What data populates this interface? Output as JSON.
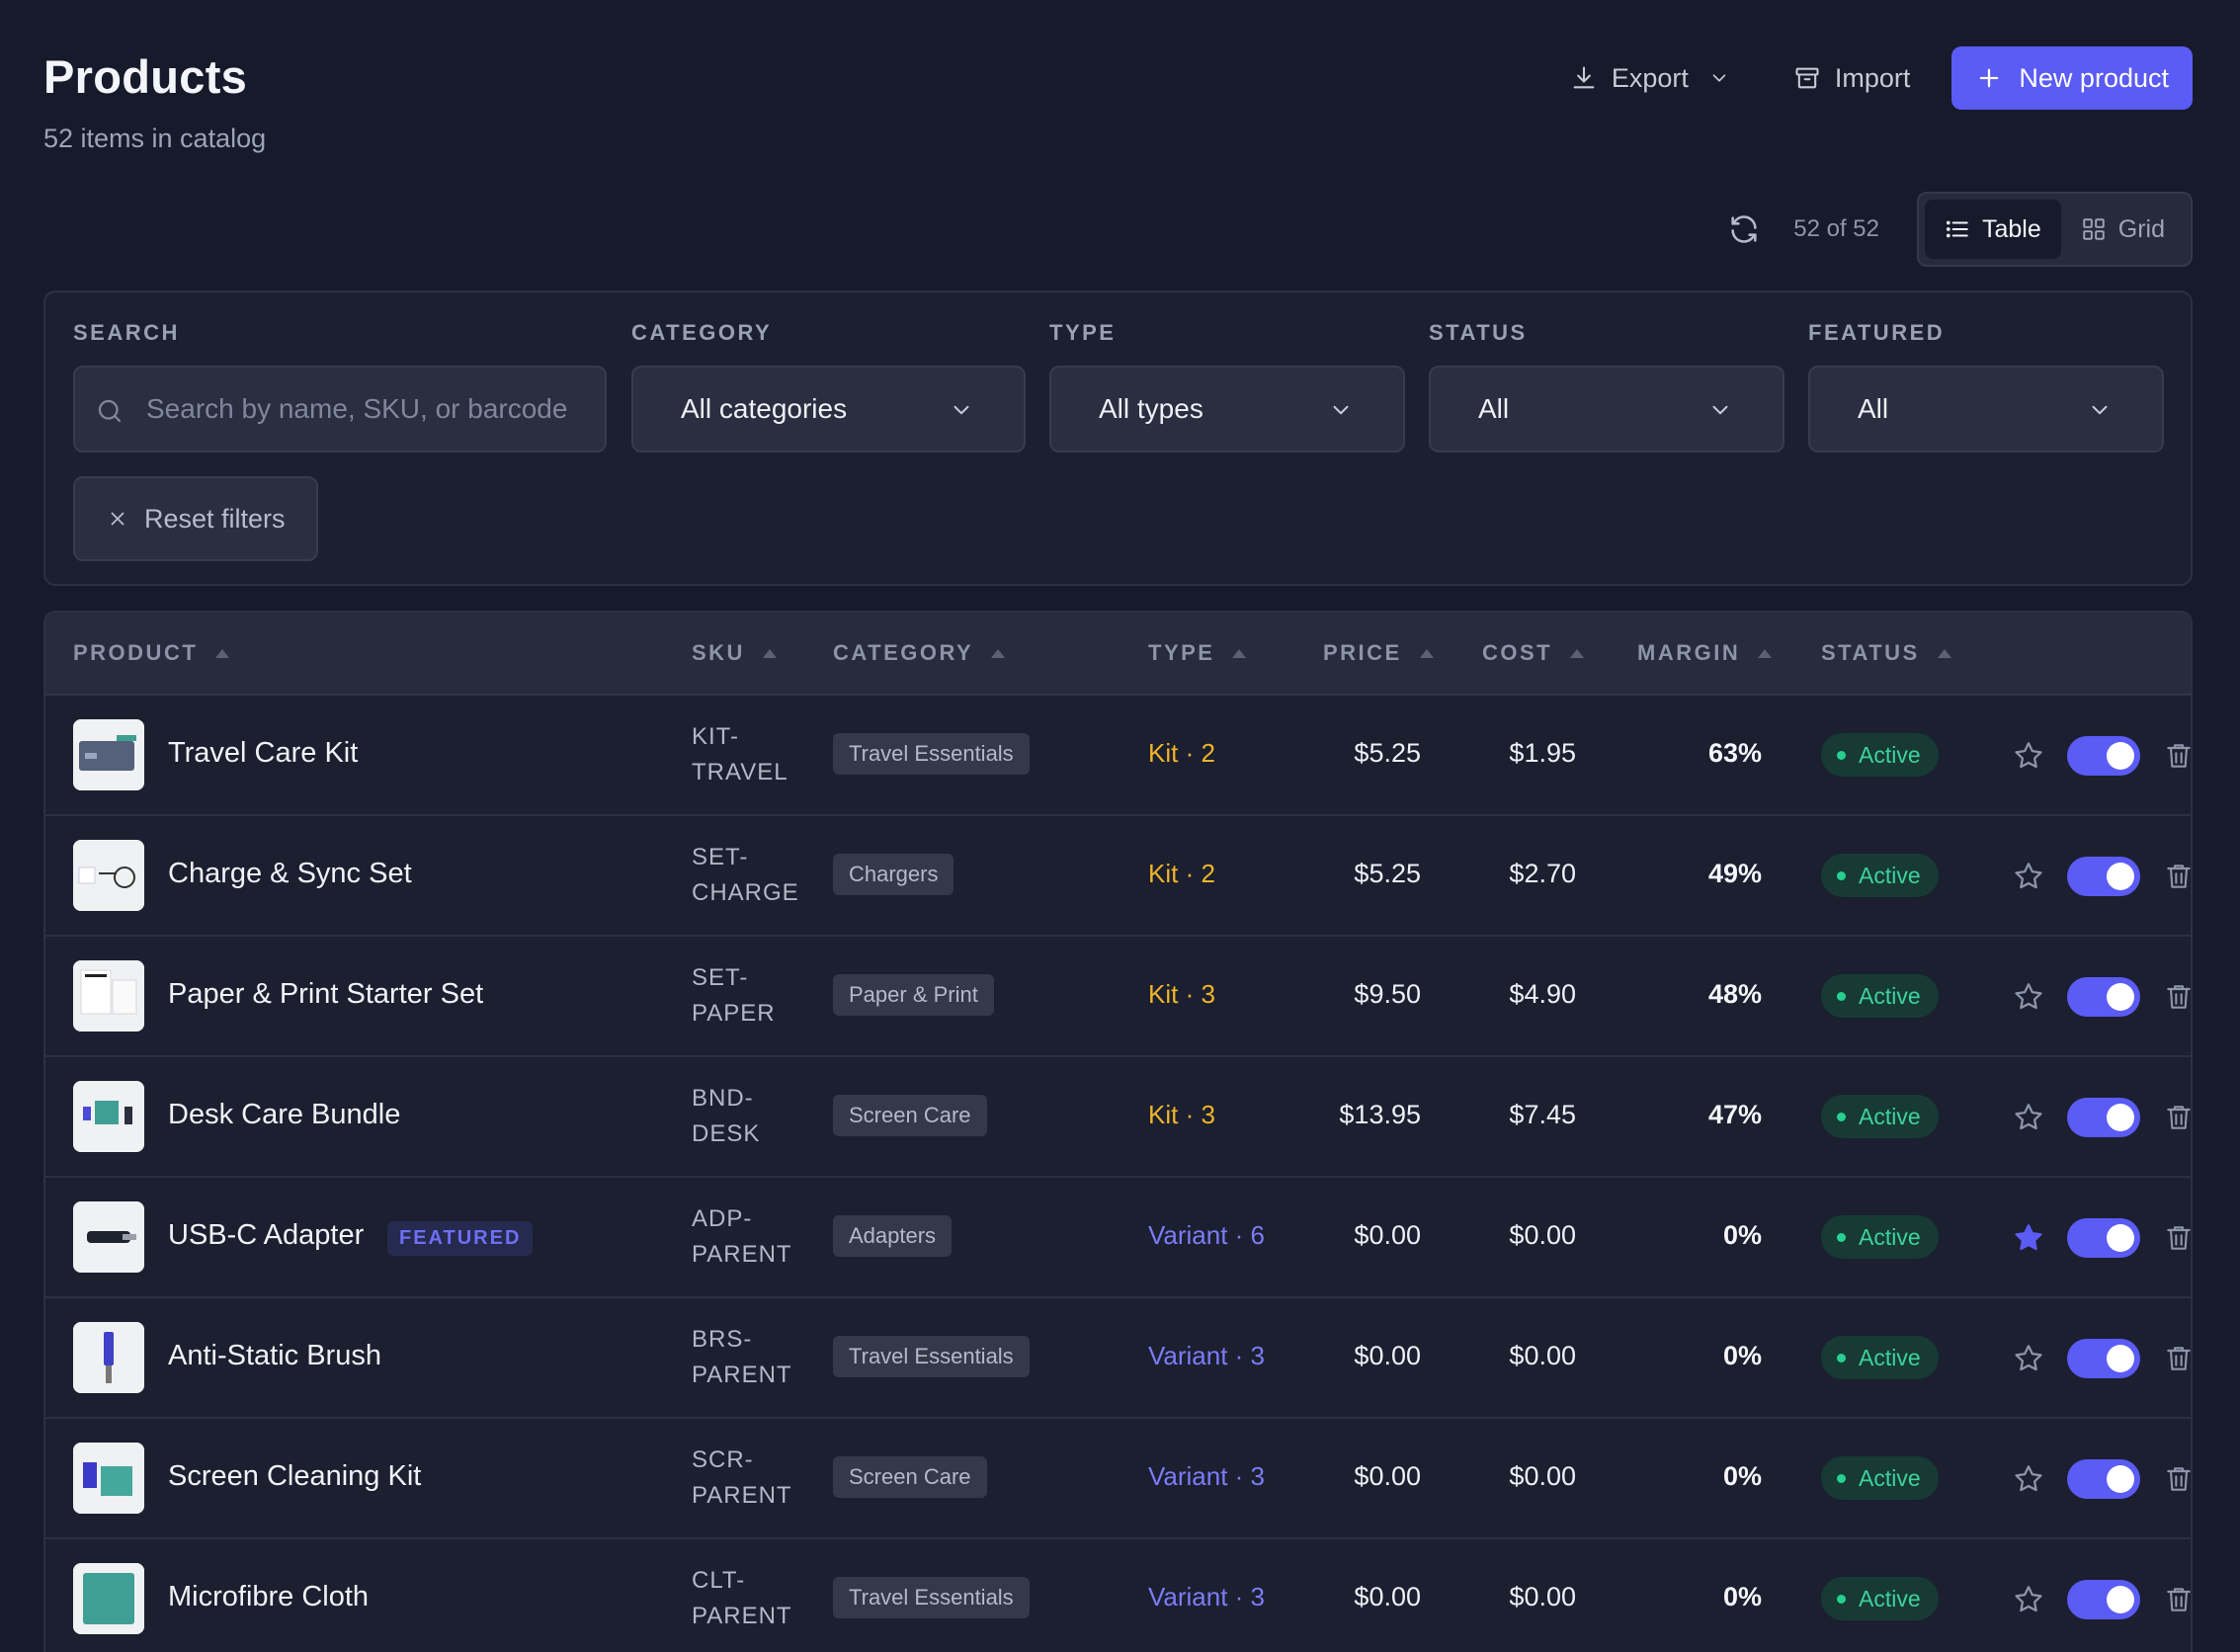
{
  "page": {
    "title": "Products",
    "subtitle": "52 items in catalog"
  },
  "actions": {
    "export": "Export",
    "import": "Import",
    "new_product": "New product"
  },
  "toolbar": {
    "count": "52 of 52",
    "view_table": "Table",
    "view_grid": "Grid",
    "active_view": "table"
  },
  "filters": {
    "search_label": "SEARCH",
    "search_placeholder": "Search by name, SKU, or barcode",
    "category_label": "CATEGORY",
    "category_value": "All categories",
    "type_label": "TYPE",
    "type_value": "All types",
    "status_label": "STATUS",
    "status_value": "All",
    "featured_label": "FEATURED",
    "featured_value": "All",
    "reset": "Reset filters"
  },
  "table": {
    "columns": {
      "product": "PRODUCT",
      "sku": "SKU",
      "category": "CATEGORY",
      "type": "TYPE",
      "price": "PRICE",
      "cost": "COST",
      "margin": "MARGIN",
      "status": "STATUS"
    },
    "featured_badge": "FEATURED",
    "rows": [
      {
        "name": "Travel Care Kit",
        "sku1": "KIT-",
        "sku2": "TRAVEL",
        "category": "Travel Essentials",
        "type": "Kit · 2",
        "type_kind": "kit",
        "price": "$5.25",
        "cost": "$1.95",
        "margin": "63%",
        "status": "Active",
        "featured": false,
        "enabled": true
      },
      {
        "name": "Charge & Sync Set",
        "sku1": "SET-",
        "sku2": "CHARGE",
        "category": "Chargers",
        "type": "Kit · 2",
        "type_kind": "kit",
        "price": "$5.25",
        "cost": "$2.70",
        "margin": "49%",
        "status": "Active",
        "featured": false,
        "enabled": true
      },
      {
        "name": "Paper & Print Starter Set",
        "sku1": "SET-",
        "sku2": "PAPER",
        "category": "Paper & Print",
        "type": "Kit · 3",
        "type_kind": "kit",
        "price": "$9.50",
        "cost": "$4.90",
        "margin": "48%",
        "status": "Active",
        "featured": false,
        "enabled": true
      },
      {
        "name": "Desk Care Bundle",
        "sku1": "BND-",
        "sku2": "DESK",
        "category": "Screen Care",
        "type": "Kit · 3",
        "type_kind": "kit",
        "price": "$13.95",
        "cost": "$7.45",
        "margin": "47%",
        "status": "Active",
        "featured": false,
        "enabled": true
      },
      {
        "name": "USB-C Adapter",
        "sku1": "ADP-",
        "sku2": "PARENT",
        "category": "Adapters",
        "type": "Variant · 6",
        "type_kind": "variant",
        "price": "$0.00",
        "cost": "$0.00",
        "margin": "0%",
        "status": "Active",
        "featured": true,
        "enabled": true
      },
      {
        "name": "Anti-Static Brush",
        "sku1": "BRS-",
        "sku2": "PARENT",
        "category": "Travel Essentials",
        "type": "Variant · 3",
        "type_kind": "variant",
        "price": "$0.00",
        "cost": "$0.00",
        "margin": "0%",
        "status": "Active",
        "featured": false,
        "enabled": true
      },
      {
        "name": "Screen Cleaning Kit",
        "sku1": "SCR-",
        "sku2": "PARENT",
        "category": "Screen Care",
        "type": "Variant · 3",
        "type_kind": "variant",
        "price": "$0.00",
        "cost": "$0.00",
        "margin": "0%",
        "status": "Active",
        "featured": false,
        "enabled": true
      },
      {
        "name": "Microfibre Cloth",
        "sku1": "CLT-",
        "sku2": "PARENT",
        "category": "Travel Essentials",
        "type": "Variant · 3",
        "type_kind": "variant",
        "price": "$0.00",
        "cost": "$0.00",
        "margin": "0%",
        "status": "Active",
        "featured": false,
        "enabled": true
      }
    ]
  },
  "colors": {
    "accent": "#5b5bf5",
    "kit": "#f0b429",
    "variant": "#7c7cf6",
    "active": "#3ed29a",
    "background": "#161a2b"
  },
  "icons": [
    "download-icon",
    "chevron-down-icon",
    "archive-icon",
    "plus-icon",
    "refresh-icon",
    "list-icon",
    "grid-icon",
    "search-icon",
    "close-icon",
    "sort-icon",
    "star-icon",
    "star-filled-icon",
    "toggle-switch",
    "trash-icon"
  ]
}
